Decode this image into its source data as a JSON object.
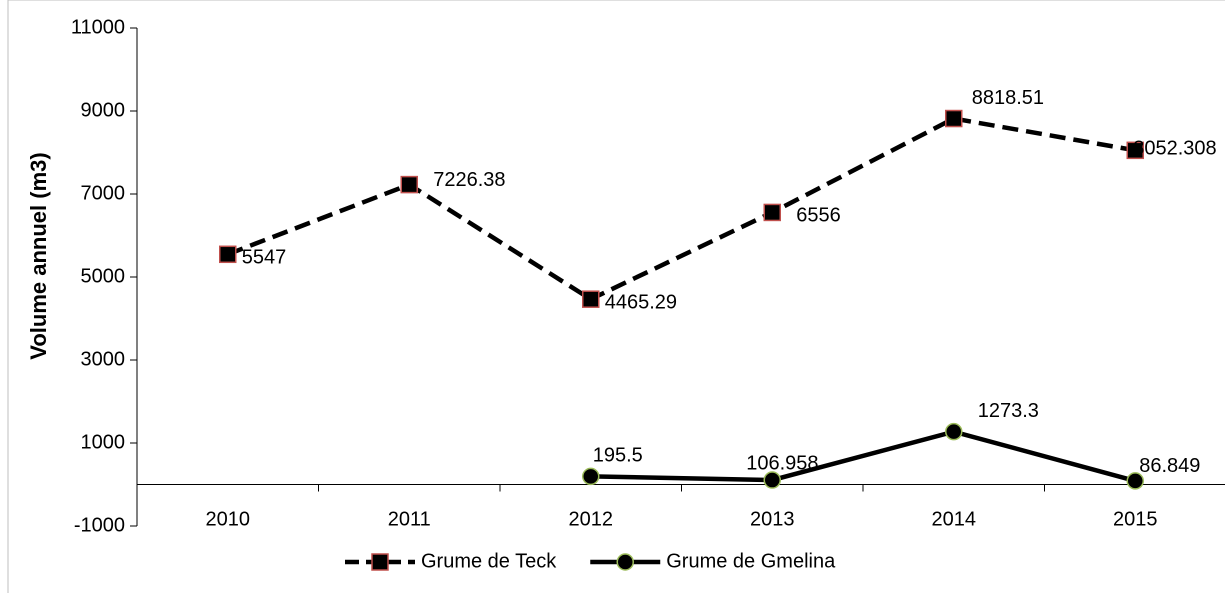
{
  "chart_data": {
    "type": "line",
    "ylabel": "Volume annuel  (m3)",
    "categories": [
      "2010",
      "2011",
      "2012",
      "2013",
      "2014",
      "2015"
    ],
    "series": [
      {
        "name": "Grume de Teck",
        "color": "#000000",
        "marker": "square",
        "marker_edge": "#c0504d",
        "dashed": true,
        "values": [
          5547,
          7226.38,
          4465.29,
          6556,
          8818.51,
          8052.308
        ]
      },
      {
        "name": "Grume de Gmelina",
        "color": "#000000",
        "marker": "circle",
        "marker_edge": "#9bbb59",
        "dashed": false,
        "values": [
          null,
          null,
          195.5,
          106.958,
          1273.3,
          86.849
        ]
      }
    ],
    "ylim": [
      -1000,
      11000
    ],
    "yticks": [
      -1000,
      1000,
      3000,
      5000,
      7000,
      9000,
      11000
    ],
    "grid": false,
    "legend": "bottom"
  }
}
